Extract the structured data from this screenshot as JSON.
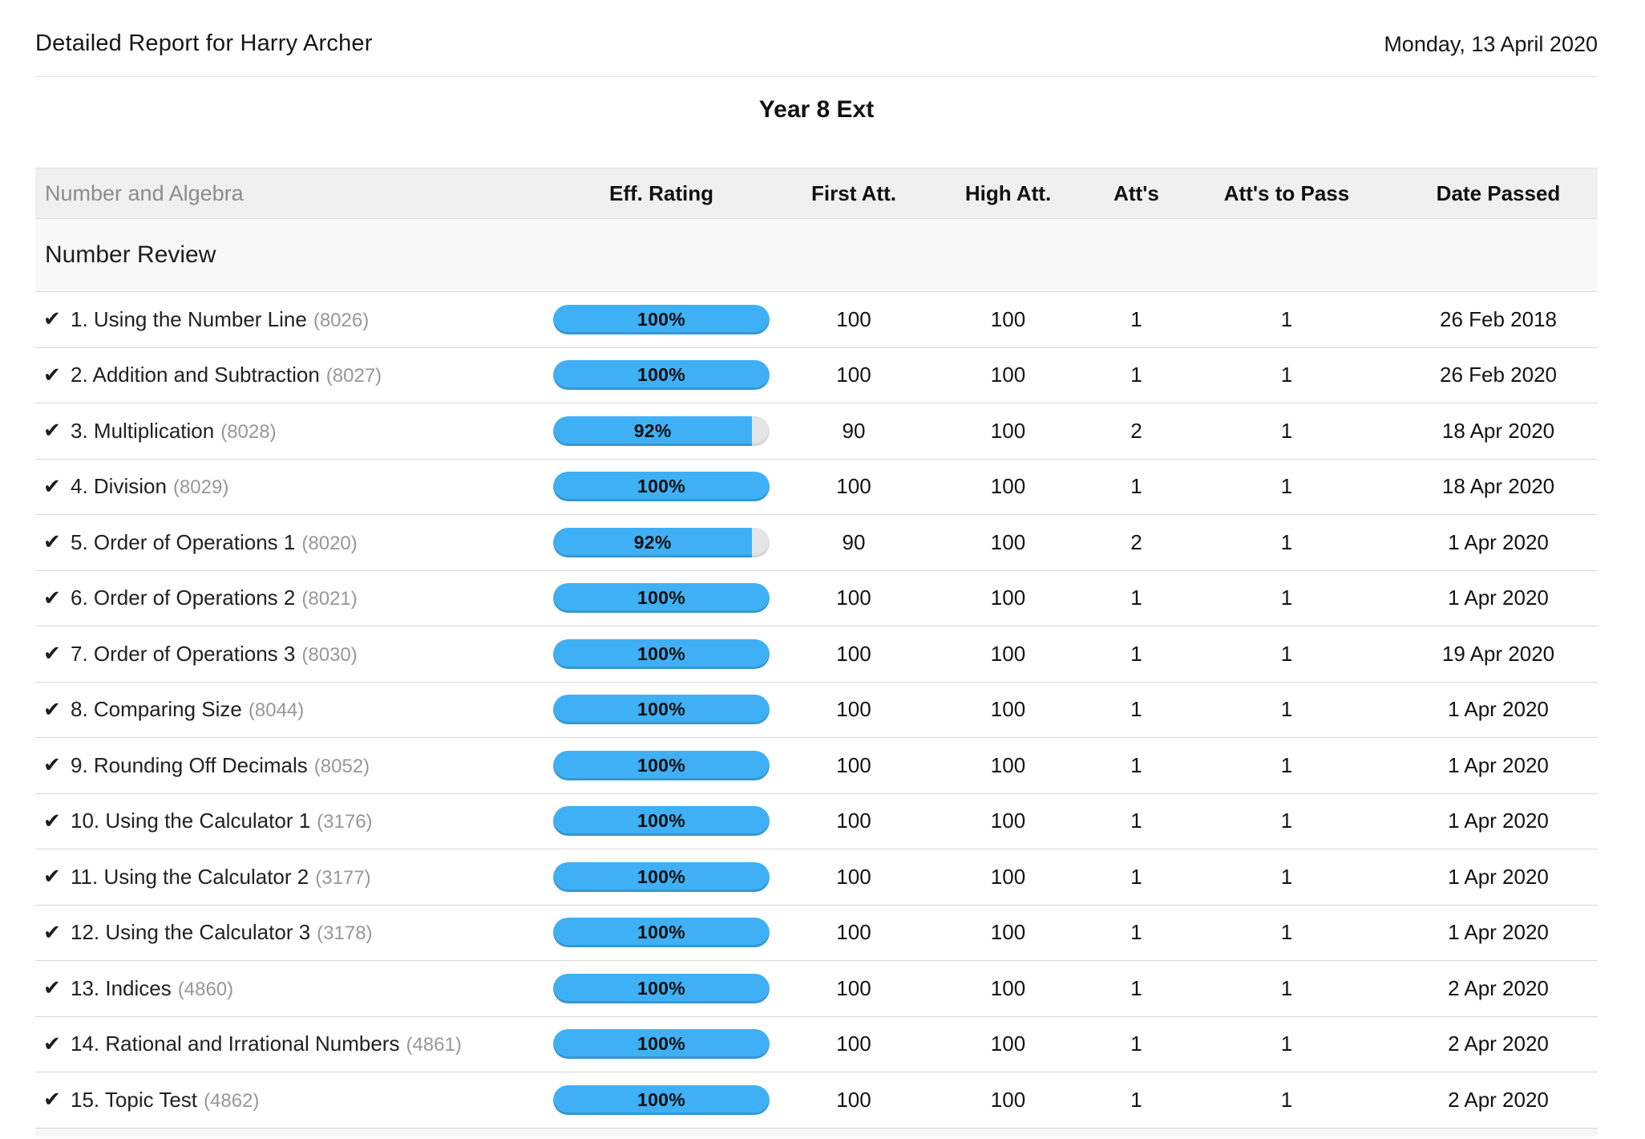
{
  "page": {
    "title": "Detailed Report for Harry Archer",
    "date": "Monday, 13 April 2020",
    "course": "Year 8 Ext"
  },
  "table": {
    "header": {
      "topic": "Number and Algebra",
      "eff_rating": "Eff. Rating",
      "first_att": "First Att.",
      "high_att": "High Att.",
      "atts": "Att's",
      "atts_to_pass": "Att's to Pass",
      "date_passed": "Date Passed"
    },
    "section": "Number Review",
    "rows": [
      {
        "passed": true,
        "name": "1. Using the Number Line",
        "id": "(8026)",
        "rating": 100,
        "rating_label": "100%",
        "first": "100",
        "high": "100",
        "atts": "1",
        "atts_to_pass": "1",
        "date": "26 Feb 2018"
      },
      {
        "passed": true,
        "name": "2. Addition and Subtraction",
        "id": "(8027)",
        "rating": 100,
        "rating_label": "100%",
        "first": "100",
        "high": "100",
        "atts": "1",
        "atts_to_pass": "1",
        "date": "26 Feb 2020"
      },
      {
        "passed": true,
        "name": "3. Multiplication",
        "id": "(8028)",
        "rating": 92,
        "rating_label": "92%",
        "first": "90",
        "high": "100",
        "atts": "2",
        "atts_to_pass": "1",
        "date": "18 Apr 2020"
      },
      {
        "passed": true,
        "name": "4. Division",
        "id": "(8029)",
        "rating": 100,
        "rating_label": "100%",
        "first": "100",
        "high": "100",
        "atts": "1",
        "atts_to_pass": "1",
        "date": "18 Apr 2020"
      },
      {
        "passed": true,
        "name": "5. Order of Operations 1",
        "id": "(8020)",
        "rating": 92,
        "rating_label": "92%",
        "first": "90",
        "high": "100",
        "atts": "2",
        "atts_to_pass": "1",
        "date": "1 Apr 2020"
      },
      {
        "passed": true,
        "name": "6. Order of Operations 2",
        "id": "(8021)",
        "rating": 100,
        "rating_label": "100%",
        "first": "100",
        "high": "100",
        "atts": "1",
        "atts_to_pass": "1",
        "date": "1 Apr 2020"
      },
      {
        "passed": true,
        "name": "7. Order of Operations 3",
        "id": "(8030)",
        "rating": 100,
        "rating_label": "100%",
        "first": "100",
        "high": "100",
        "atts": "1",
        "atts_to_pass": "1",
        "date": "19 Apr 2020"
      },
      {
        "passed": true,
        "name": "8. Comparing Size",
        "id": "(8044)",
        "rating": 100,
        "rating_label": "100%",
        "first": "100",
        "high": "100",
        "atts": "1",
        "atts_to_pass": "1",
        "date": "1 Apr 2020"
      },
      {
        "passed": true,
        "name": "9. Rounding Off Decimals",
        "id": "(8052)",
        "rating": 100,
        "rating_label": "100%",
        "first": "100",
        "high": "100",
        "atts": "1",
        "atts_to_pass": "1",
        "date": "1 Apr 2020"
      },
      {
        "passed": true,
        "name": "10. Using the Calculator 1",
        "id": "(3176)",
        "rating": 100,
        "rating_label": "100%",
        "first": "100",
        "high": "100",
        "atts": "1",
        "atts_to_pass": "1",
        "date": "1 Apr 2020"
      },
      {
        "passed": true,
        "name": "11. Using the Calculator 2",
        "id": "(3177)",
        "rating": 100,
        "rating_label": "100%",
        "first": "100",
        "high": "100",
        "atts": "1",
        "atts_to_pass": "1",
        "date": "1 Apr 2020"
      },
      {
        "passed": true,
        "name": "12. Using the Calculator 3",
        "id": "(3178)",
        "rating": 100,
        "rating_label": "100%",
        "first": "100",
        "high": "100",
        "atts": "1",
        "atts_to_pass": "1",
        "date": "1 Apr 2020"
      },
      {
        "passed": true,
        "name": "13. Indices",
        "id": "(4860)",
        "rating": 100,
        "rating_label": "100%",
        "first": "100",
        "high": "100",
        "atts": "1",
        "atts_to_pass": "1",
        "date": "2 Apr 2020"
      },
      {
        "passed": true,
        "name": "14. Rational and Irrational Numbers",
        "id": "(4861)",
        "rating": 100,
        "rating_label": "100%",
        "first": "100",
        "high": "100",
        "atts": "1",
        "atts_to_pass": "1",
        "date": "2 Apr 2020"
      },
      {
        "passed": true,
        "name": "15. Topic Test",
        "id": "(4862)",
        "rating": 100,
        "rating_label": "100%",
        "first": "100",
        "high": "100",
        "atts": "1",
        "atts_to_pass": "1",
        "date": "2 Apr 2020"
      }
    ]
  },
  "icons": {
    "passed_check": "✔"
  },
  "colors": {
    "bar_fill": "#3fb0f5",
    "bar_track": "#e4e4e4"
  }
}
